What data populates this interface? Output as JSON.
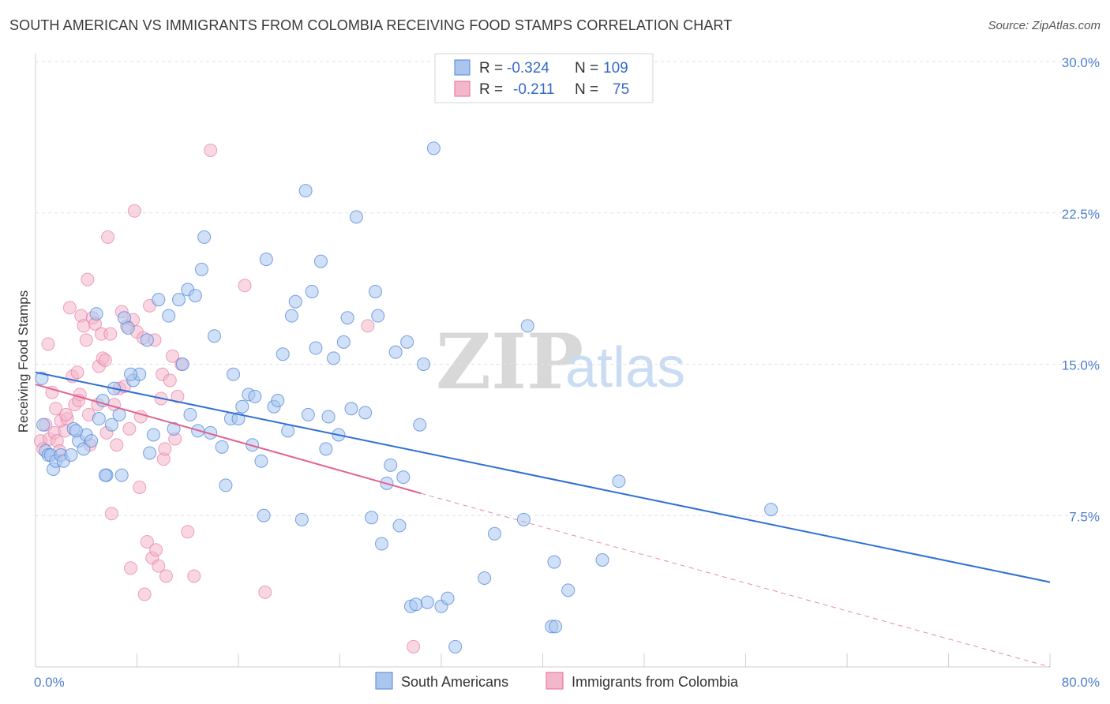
{
  "title": "SOUTH AMERICAN VS IMMIGRANTS FROM COLOMBIA RECEIVING FOOD STAMPS CORRELATION CHART",
  "source": "Source: ZipAtlas.com",
  "watermark": {
    "zip": "ZIP",
    "atlas": "atlas"
  },
  "colors": {
    "blue": "#4f86d9",
    "blue_fill": "#aac6ee",
    "pink": "#e46a98",
    "pink_fill": "#f4b6cb",
    "tick_text": "#4f7fd0"
  },
  "legend_top": {
    "rows": [
      {
        "r_label": "R = ",
        "r_value": "-0.324",
        "n_label": "N = ",
        "n_value": "109"
      },
      {
        "r_label": "R = ",
        "r_value": "-0.211",
        "n_label": "N = ",
        "n_value": "75"
      }
    ]
  },
  "legend_bottom": [
    "South Americans",
    "Immigrants from Colombia"
  ],
  "chart_data": {
    "type": "scatter",
    "title": "SOUTH AMERICAN VS IMMIGRANTS FROM COLOMBIA RECEIVING FOOD STAMPS CORRELATION CHART",
    "xlabel": "",
    "ylabel": "Receiving Food Stamps",
    "xlim": [
      0,
      80
    ],
    "ylim": [
      0,
      30
    ],
    "x_tick_labels": [
      "0.0%",
      "80.0%"
    ],
    "y_ticks": [
      7.5,
      15.0,
      22.5,
      30.0
    ],
    "y_tick_labels": [
      "7.5%",
      "15.0%",
      "22.5%",
      "30.0%"
    ],
    "grid": "horizontal dashed",
    "legend_position": "top-center",
    "series": [
      {
        "name": "South Americans",
        "color": "#4f86d9",
        "trend": {
          "x": [
            0,
            80
          ],
          "y": [
            14.6,
            4.2
          ]
        },
        "points": [
          [
            0.5,
            14.3
          ],
          [
            0.6,
            12.0
          ],
          [
            0.8,
            10.7
          ],
          [
            1.0,
            10.5
          ],
          [
            1.2,
            10.5
          ],
          [
            1.4,
            9.8
          ],
          [
            1.6,
            10.2
          ],
          [
            2.0,
            10.5
          ],
          [
            2.2,
            10.2
          ],
          [
            2.8,
            10.5
          ],
          [
            3.0,
            11.8
          ],
          [
            3.4,
            11.2
          ],
          [
            3.8,
            10.8
          ],
          [
            4.0,
            11.5
          ],
          [
            4.4,
            11.2
          ],
          [
            4.8,
            17.5
          ],
          [
            5.0,
            12.3
          ],
          [
            5.3,
            13.2
          ],
          [
            5.6,
            9.5
          ],
          [
            6.0,
            12.0
          ],
          [
            6.2,
            13.8
          ],
          [
            6.6,
            12.5
          ],
          [
            7.0,
            17.3
          ],
          [
            7.3,
            16.8
          ],
          [
            7.7,
            14.2
          ],
          [
            8.2,
            14.5
          ],
          [
            8.8,
            16.2
          ],
          [
            9.0,
            10.6
          ],
          [
            9.3,
            11.5
          ],
          [
            9.7,
            18.2
          ],
          [
            10.5,
            17.4
          ],
          [
            10.9,
            11.8
          ],
          [
            11.3,
            18.2
          ],
          [
            11.6,
            15.0
          ],
          [
            12.0,
            18.7
          ],
          [
            12.2,
            12.5
          ],
          [
            12.6,
            18.4
          ],
          [
            12.8,
            11.7
          ],
          [
            13.1,
            19.7
          ],
          [
            13.3,
            21.3
          ],
          [
            13.8,
            11.6
          ],
          [
            14.1,
            16.4
          ],
          [
            14.7,
            10.9
          ],
          [
            15.0,
            9.0
          ],
          [
            15.4,
            12.3
          ],
          [
            15.6,
            14.5
          ],
          [
            16.0,
            12.3
          ],
          [
            16.3,
            12.9
          ],
          [
            16.8,
            13.5
          ],
          [
            17.1,
            11.0
          ],
          [
            17.3,
            13.4
          ],
          [
            17.8,
            10.2
          ],
          [
            18.0,
            7.5
          ],
          [
            18.2,
            20.2
          ],
          [
            18.8,
            12.9
          ],
          [
            19.1,
            13.2
          ],
          [
            19.5,
            15.5
          ],
          [
            19.9,
            11.7
          ],
          [
            20.2,
            17.4
          ],
          [
            20.5,
            18.1
          ],
          [
            21.0,
            7.3
          ],
          [
            21.3,
            23.6
          ],
          [
            21.5,
            12.5
          ],
          [
            21.8,
            18.6
          ],
          [
            22.1,
            15.8
          ],
          [
            22.5,
            20.1
          ],
          [
            22.9,
            10.8
          ],
          [
            23.1,
            12.4
          ],
          [
            23.5,
            15.3
          ],
          [
            23.9,
            11.5
          ],
          [
            24.3,
            16.1
          ],
          [
            24.6,
            17.3
          ],
          [
            24.9,
            12.8
          ],
          [
            25.3,
            22.3
          ],
          [
            26.0,
            12.6
          ],
          [
            26.5,
            7.4
          ],
          [
            26.8,
            18.6
          ],
          [
            27.0,
            17.4
          ],
          [
            27.3,
            6.1
          ],
          [
            27.7,
            9.1
          ],
          [
            28.0,
            10.0
          ],
          [
            28.4,
            15.6
          ],
          [
            28.7,
            7.0
          ],
          [
            29.0,
            9.4
          ],
          [
            29.3,
            16.1
          ],
          [
            29.6,
            3.0
          ],
          [
            30.0,
            3.1
          ],
          [
            30.3,
            12.0
          ],
          [
            30.6,
            15.0
          ],
          [
            30.9,
            3.2
          ],
          [
            31.4,
            25.7
          ],
          [
            32.0,
            3.0
          ],
          [
            32.5,
            3.4
          ],
          [
            33.1,
            1.0
          ],
          [
            35.4,
            4.4
          ],
          [
            36.2,
            6.6
          ],
          [
            38.5,
            7.3
          ],
          [
            38.8,
            16.9
          ],
          [
            40.7,
            2.0
          ],
          [
            40.9,
            5.2
          ],
          [
            41.0,
            2.0
          ],
          [
            42.0,
            3.8
          ],
          [
            44.7,
            5.3
          ],
          [
            46.0,
            9.2
          ],
          [
            58.0,
            7.8
          ],
          [
            5.5,
            9.5
          ],
          [
            6.8,
            9.5
          ],
          [
            3.2,
            11.7
          ],
          [
            7.5,
            14.5
          ]
        ]
      },
      {
        "name": "Immigrants from Colombia",
        "color": "#e46a98",
        "trend": {
          "x": [
            0,
            30.4
          ],
          "y": [
            14.0,
            8.6
          ]
        },
        "trend_dashed": {
          "x": [
            30.4,
            80
          ],
          "y": [
            8.6,
            0
          ]
        },
        "points": [
          [
            0.4,
            11.2
          ],
          [
            0.6,
            10.8
          ],
          [
            0.8,
            12.0
          ],
          [
            1.0,
            16.0
          ],
          [
            1.1,
            11.3
          ],
          [
            1.3,
            13.6
          ],
          [
            1.5,
            11.6
          ],
          [
            1.7,
            11.2
          ],
          [
            1.9,
            10.7
          ],
          [
            2.0,
            12.2
          ],
          [
            2.3,
            11.7
          ],
          [
            2.5,
            12.3
          ],
          [
            2.7,
            17.8
          ],
          [
            2.9,
            14.4
          ],
          [
            3.1,
            13.0
          ],
          [
            3.3,
            14.6
          ],
          [
            3.5,
            13.5
          ],
          [
            3.6,
            17.4
          ],
          [
            3.8,
            16.9
          ],
          [
            4.0,
            16.2
          ],
          [
            4.1,
            19.2
          ],
          [
            4.2,
            12.5
          ],
          [
            4.5,
            17.3
          ],
          [
            4.7,
            17.0
          ],
          [
            4.9,
            13.0
          ],
          [
            5.0,
            14.9
          ],
          [
            5.2,
            16.5
          ],
          [
            5.3,
            15.3
          ],
          [
            5.5,
            15.2
          ],
          [
            5.6,
            11.6
          ],
          [
            5.7,
            21.3
          ],
          [
            5.9,
            16.5
          ],
          [
            6.0,
            7.6
          ],
          [
            6.2,
            13.0
          ],
          [
            6.4,
            11.0
          ],
          [
            6.6,
            13.8
          ],
          [
            6.8,
            17.6
          ],
          [
            7.0,
            13.9
          ],
          [
            7.2,
            16.9
          ],
          [
            7.4,
            11.8
          ],
          [
            7.5,
            4.9
          ],
          [
            7.7,
            17.2
          ],
          [
            7.8,
            22.6
          ],
          [
            8.0,
            16.6
          ],
          [
            8.2,
            8.9
          ],
          [
            8.3,
            12.4
          ],
          [
            8.5,
            16.3
          ],
          [
            8.6,
            3.6
          ],
          [
            8.8,
            6.2
          ],
          [
            9.0,
            17.9
          ],
          [
            9.2,
            5.4
          ],
          [
            9.4,
            16.2
          ],
          [
            9.5,
            5.8
          ],
          [
            9.7,
            5.0
          ],
          [
            9.9,
            13.3
          ],
          [
            10.0,
            14.5
          ],
          [
            10.1,
            10.3
          ],
          [
            10.2,
            10.8
          ],
          [
            10.3,
            4.5
          ],
          [
            10.6,
            14.2
          ],
          [
            10.8,
            15.4
          ],
          [
            11.0,
            11.3
          ],
          [
            11.2,
            13.4
          ],
          [
            11.5,
            15.0
          ],
          [
            12.0,
            6.7
          ],
          [
            12.5,
            4.5
          ],
          [
            13.8,
            25.6
          ],
          [
            16.5,
            18.9
          ],
          [
            18.1,
            3.7
          ],
          [
            26.2,
            16.9
          ],
          [
            29.8,
            1.0
          ],
          [
            2.4,
            12.5
          ],
          [
            3.4,
            13.2
          ],
          [
            4.3,
            11.0
          ],
          [
            1.6,
            12.8
          ]
        ]
      }
    ]
  }
}
